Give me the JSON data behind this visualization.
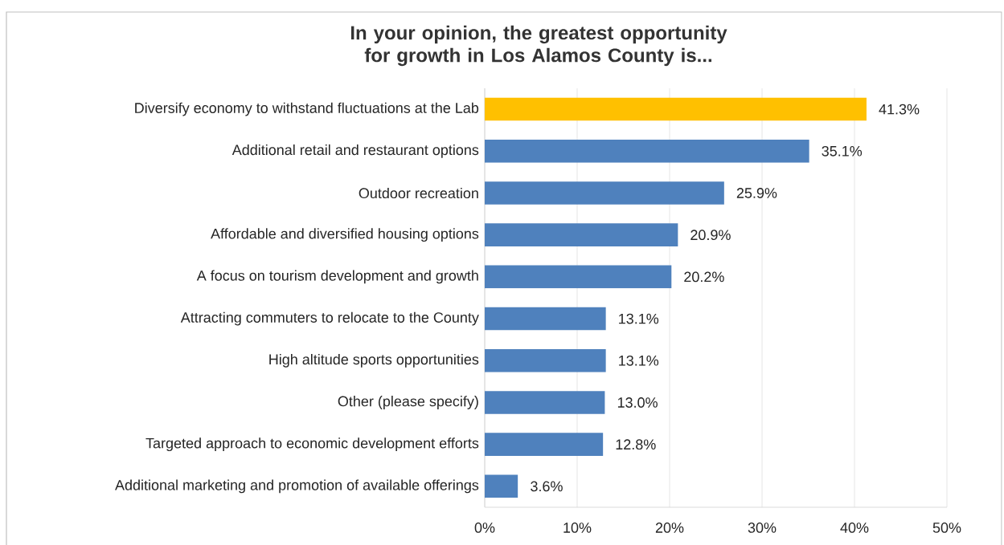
{
  "chart_data": {
    "type": "bar",
    "orientation": "horizontal",
    "title": "In your opinion, the greatest opportunity for growth in Los Alamos County is...",
    "categories": [
      "Diversify economy to withstand fluctuations at the Lab",
      "Additional retail and restaurant options",
      "Outdoor recreation",
      "Affordable and diversified housing options",
      "A focus on tourism development and growth",
      "Attracting commuters to relocate to the County",
      "High altitude sports opportunities",
      "Other (please specify)",
      "Targeted approach to economic development efforts",
      "Additional marketing and promotion of available offerings"
    ],
    "values": [
      41.3,
      35.1,
      25.9,
      20.9,
      20.2,
      13.1,
      13.1,
      13.0,
      12.8,
      3.6
    ],
    "value_labels": [
      "41.3%",
      "35.1%",
      "25.9%",
      "20.9%",
      "20.2%",
      "13.1%",
      "13.1%",
      "13.0%",
      "12.8%",
      "3.6%"
    ],
    "colors": [
      "#ffc000",
      "#4f81bd",
      "#4f81bd",
      "#4f81bd",
      "#4f81bd",
      "#4f81bd",
      "#4f81bd",
      "#4f81bd",
      "#4f81bd",
      "#4f81bd"
    ],
    "xlim": [
      0,
      50
    ],
    "xticks": [
      {
        "value": 0,
        "label": "0%"
      },
      {
        "value": 10,
        "label": "10%"
      },
      {
        "value": 20,
        "label": "20%"
      },
      {
        "value": 30,
        "label": "30%"
      },
      {
        "value": 40,
        "label": "40%"
      },
      {
        "value": 50,
        "label": "50%"
      }
    ],
    "grid": "x"
  }
}
